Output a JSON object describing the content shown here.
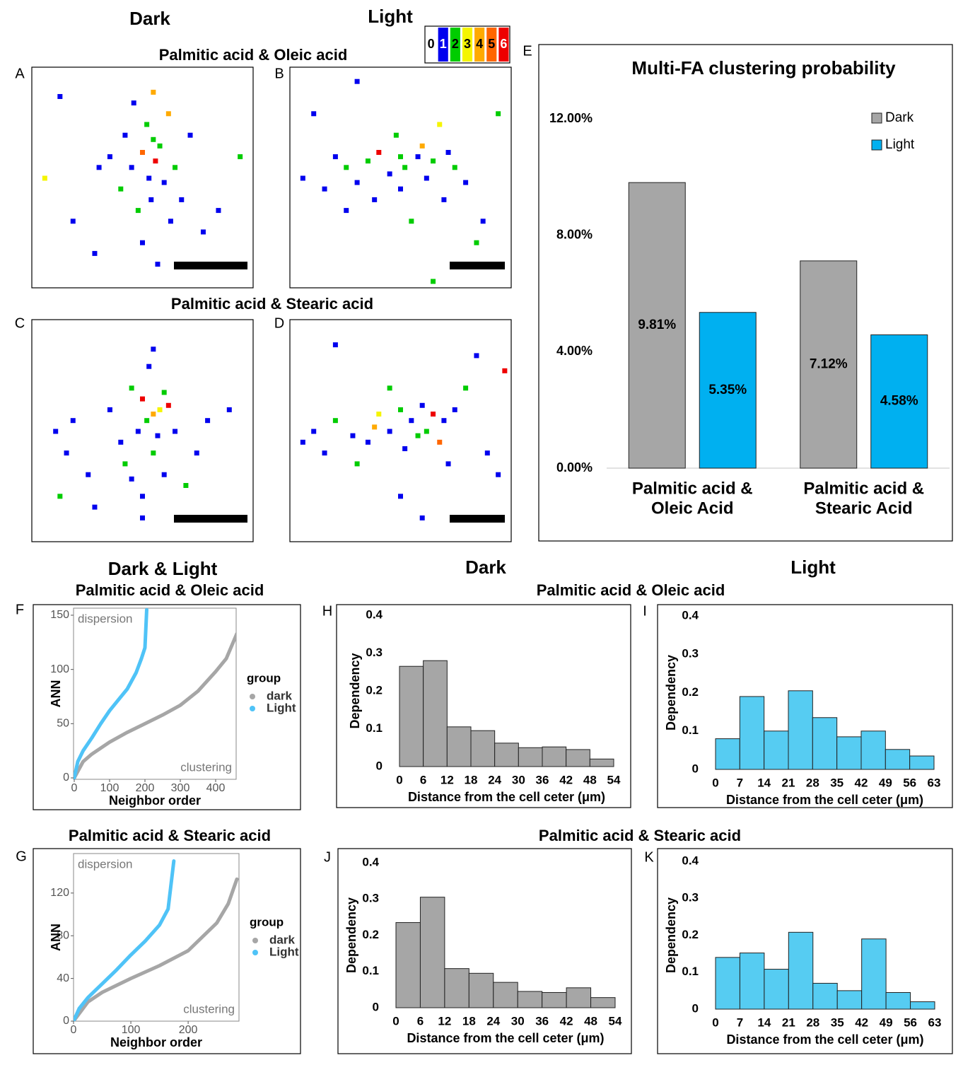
{
  "headers": [
    "Dark",
    "Light",
    "Palmitic acid & Oleic acid",
    "Palmitic acid & Stearic acid",
    "Dark & Light",
    "Palmitic acid & Oleic acid",
    "Dark",
    "Light",
    "Palmitic acid & Oleic acid",
    "Palmitic acid & Stearic acid",
    "Palmitic acid & Stearic acid"
  ],
  "panels": [
    "A",
    "B",
    "C",
    "D",
    "E",
    "F",
    "G",
    "H",
    "I",
    "J",
    "K"
  ],
  "colorbar": {
    "labels": [
      0,
      1,
      2,
      3,
      4,
      5,
      6
    ],
    "colors": [
      "#ffffff",
      "#0000ee",
      "#00cc00",
      "#f5f500",
      "#ffaa00",
      "#ff6600",
      "#ee0000"
    ]
  },
  "chart_data": [
    {
      "type": "scatter",
      "xlim": [
        0,
        100
      ],
      "ylim": [
        0,
        100
      ],
      "x": [
        12,
        18,
        28,
        35,
        40,
        42,
        45,
        46,
        48,
        50,
        50,
        52,
        53,
        54,
        55,
        56,
        57,
        58,
        60,
        62,
        63,
        65,
        68,
        72,
        78,
        85,
        95,
        5,
        30,
        55
      ],
      "y": [
        88,
        30,
        15,
        60,
        45,
        70,
        55,
        85,
        35,
        62,
        20,
        75,
        50,
        40,
        90,
        58,
        10,
        65,
        48,
        80,
        30,
        55,
        40,
        70,
        25,
        35,
        60,
        50,
        55,
        68
      ],
      "levels": [
        1,
        1,
        1,
        1,
        2,
        1,
        1,
        1,
        2,
        5,
        1,
        2,
        1,
        1,
        4,
        6,
        1,
        2,
        1,
        4,
        1,
        2,
        1,
        1,
        1,
        1,
        2,
        3,
        1,
        2
      ]
    },
    {
      "type": "scatter",
      "xlim": [
        0,
        100
      ],
      "ylim": [
        0,
        100
      ],
      "x": [
        5,
        10,
        15,
        20,
        25,
        30,
        35,
        38,
        40,
        45,
        48,
        50,
        52,
        55,
        58,
        60,
        62,
        65,
        68,
        70,
        72,
        75,
        80,
        85,
        88,
        95,
        30,
        50,
        65,
        25
      ],
      "y": [
        50,
        80,
        45,
        60,
        55,
        48,
        58,
        40,
        62,
        52,
        70,
        45,
        55,
        30,
        60,
        65,
        50,
        58,
        75,
        40,
        62,
        55,
        48,
        20,
        30,
        80,
        95,
        60,
        2,
        35
      ],
      "levels": [
        1,
        1,
        1,
        1,
        2,
        1,
        2,
        1,
        6,
        1,
        2,
        1,
        2,
        2,
        1,
        4,
        1,
        2,
        3,
        1,
        1,
        2,
        1,
        2,
        1,
        2,
        1,
        2,
        2,
        1
      ]
    },
    {
      "type": "scatter",
      "xlim": [
        0,
        100
      ],
      "ylim": [
        0,
        100
      ],
      "x": [
        10,
        15,
        18,
        25,
        35,
        40,
        42,
        45,
        48,
        50,
        50,
        52,
        53,
        55,
        55,
        57,
        58,
        60,
        62,
        65,
        70,
        75,
        80,
        90,
        12,
        28,
        50,
        55,
        45,
        60
      ],
      "y": [
        50,
        40,
        55,
        30,
        60,
        45,
        35,
        70,
        50,
        65,
        20,
        55,
        80,
        40,
        88,
        48,
        60,
        30,
        62,
        50,
        25,
        40,
        55,
        60,
        20,
        15,
        10,
        58,
        28,
        68
      ],
      "levels": [
        1,
        1,
        1,
        1,
        1,
        1,
        2,
        2,
        1,
        6,
        1,
        2,
        1,
        2,
        1,
        1,
        3,
        1,
        6,
        1,
        2,
        1,
        1,
        1,
        2,
        1,
        1,
        4,
        1,
        2
      ]
    },
    {
      "type": "scatter",
      "xlim": [
        0,
        100
      ],
      "ylim": [
        0,
        100
      ],
      "x": [
        5,
        10,
        15,
        20,
        28,
        35,
        38,
        40,
        45,
        50,
        52,
        55,
        58,
        60,
        62,
        65,
        68,
        70,
        72,
        75,
        80,
        85,
        90,
        95,
        98,
        20,
        50,
        60,
        30,
        45
      ],
      "y": [
        45,
        50,
        40,
        55,
        48,
        45,
        52,
        58,
        50,
        60,
        42,
        55,
        48,
        62,
        50,
        58,
        45,
        55,
        35,
        60,
        70,
        85,
        40,
        30,
        78,
        90,
        20,
        10,
        35,
        70
      ],
      "levels": [
        1,
        1,
        1,
        2,
        1,
        1,
        4,
        3,
        1,
        2,
        1,
        1,
        2,
        1,
        2,
        6,
        5,
        1,
        1,
        1,
        2,
        1,
        1,
        1,
        6,
        1,
        1,
        1,
        2,
        2
      ]
    },
    {
      "type": "bar",
      "title": "Multi-FA clustering probability",
      "categories": [
        [
          "Palmitic acid &",
          "Oleic Acid"
        ],
        [
          "Palmitic acid &",
          "Stearic Acid"
        ]
      ],
      "series": [
        {
          "name": "Dark",
          "color": "#a6a6a6",
          "values": [
            9.81,
            7.12
          ],
          "value_labels": [
            "9.81%",
            "7.12%"
          ]
        },
        {
          "name": "Light",
          "color": "#00b0f0",
          "values": [
            5.35,
            4.58
          ],
          "value_labels": [
            "5.35%",
            "4.58%"
          ]
        }
      ],
      "ylim": [
        0,
        12
      ],
      "yticks": [
        {
          "value": 0,
          "label": "0.00%"
        },
        {
          "value": 4,
          "label": "4.00%"
        },
        {
          "value": 8,
          "label": "8.00%"
        },
        {
          "value": 12,
          "label": "12.00%"
        }
      ],
      "legend": "upper right"
    },
    {
      "type": "line",
      "xlabel": "Neighbor order",
      "ylabel": "ANN",
      "legend_title": "group",
      "annotations": [
        "dispersion",
        "clustering"
      ],
      "xlim": [
        0,
        460
      ],
      "ylim": [
        0,
        155
      ],
      "xticks": [
        0,
        100,
        200,
        300,
        400
      ],
      "yticks": [
        0,
        50,
        100,
        150
      ],
      "series": [
        {
          "name": "dark",
          "color": "#a6a6a6",
          "x": [
            0,
            25,
            50,
            100,
            150,
            200,
            250,
            300,
            350,
            400,
            430,
            460
          ],
          "values": [
            0,
            15,
            22,
            33,
            42,
            50,
            58,
            67,
            80,
            98,
            110,
            133
          ]
        },
        {
          "name": "Light",
          "color": "#4fc3f7",
          "x": [
            0,
            10,
            25,
            50,
            75,
            100,
            125,
            150,
            175,
            190,
            200,
            205
          ],
          "values": [
            0,
            15,
            25,
            37,
            50,
            62,
            72,
            82,
            97,
            110,
            120,
            155
          ]
        }
      ]
    },
    {
      "type": "line",
      "xlabel": "Neighbor order",
      "ylabel": "ANN",
      "legend_title": "group",
      "annotations": [
        "dispersion",
        "clustering"
      ],
      "xlim": [
        0,
        285
      ],
      "ylim": [
        0,
        155
      ],
      "xticks": [
        0,
        100,
        200
      ],
      "yticks": [
        0,
        40,
        80,
        120
      ],
      "series": [
        {
          "name": "dark",
          "color": "#a6a6a6",
          "x": [
            0,
            25,
            50,
            100,
            150,
            200,
            250,
            270,
            285
          ],
          "values": [
            0,
            18,
            27,
            40,
            52,
            66,
            92,
            110,
            133
          ]
        },
        {
          "name": "Light",
          "color": "#4fc3f7",
          "x": [
            0,
            10,
            25,
            50,
            75,
            100,
            125,
            150,
            165,
            175
          ],
          "values": [
            0,
            12,
            22,
            35,
            48,
            62,
            75,
            90,
            105,
            150
          ]
        }
      ]
    },
    {
      "type": "histogram",
      "xlabel": "Distance from the cell ceter (μm)",
      "ylabel": "Dependency",
      "color": "#a6a6a6",
      "bins": [
        0,
        6,
        12,
        18,
        24,
        30,
        36,
        42,
        48,
        54
      ],
      "values": [
        0.265,
        0.28,
        0.105,
        0.095,
        0.062,
        0.05,
        0.052,
        0.045,
        0.02
      ],
      "xlim": [
        0,
        54
      ],
      "ylim": [
        0,
        0.4
      ],
      "xticks": [
        0,
        6,
        12,
        18,
        24,
        30,
        36,
        42,
        48,
        54
      ],
      "yticks": [
        0,
        0.1,
        0.2,
        0.3,
        0.4
      ]
    },
    {
      "type": "histogram",
      "xlabel": "Distance from the cell ceter (μm)",
      "ylabel": "Dependency",
      "color": "#56ccf2",
      "bins": [
        0,
        7,
        14,
        21,
        28,
        35,
        42,
        49,
        56,
        63
      ],
      "values": [
        0.08,
        0.19,
        0.1,
        0.205,
        0.135,
        0.085,
        0.1,
        0.052,
        0.035
      ],
      "xlim": [
        0,
        63
      ],
      "ylim": [
        0,
        0.4
      ],
      "xticks": [
        0,
        7,
        14,
        21,
        28,
        35,
        42,
        49,
        56,
        63
      ],
      "yticks": [
        0,
        0.1,
        0.2,
        0.3,
        0.4
      ]
    },
    {
      "type": "histogram",
      "xlabel": "Distance from the cell ceter (μm)",
      "ylabel": "Dependency",
      "color": "#a6a6a6",
      "bins": [
        0,
        6,
        12,
        18,
        24,
        30,
        36,
        42,
        48,
        54
      ],
      "values": [
        0.235,
        0.305,
        0.108,
        0.095,
        0.07,
        0.045,
        0.042,
        0.055,
        0.028
      ],
      "xlim": [
        0,
        54
      ],
      "ylim": [
        0,
        0.4
      ],
      "xticks": [
        0,
        6,
        12,
        18,
        24,
        30,
        36,
        42,
        48,
        54
      ],
      "yticks": [
        0,
        0.1,
        0.2,
        0.3,
        0.4
      ]
    },
    {
      "type": "histogram",
      "xlabel": "Distance from the cell ceter (μm)",
      "ylabel": "Dependency",
      "color": "#56ccf2",
      "bins": [
        0,
        7,
        14,
        21,
        28,
        35,
        42,
        49,
        56,
        63
      ],
      "values": [
        0.14,
        0.152,
        0.108,
        0.208,
        0.07,
        0.05,
        0.19,
        0.045,
        0.02
      ],
      "xlim": [
        0,
        63
      ],
      "ylim": [
        0,
        0.4
      ],
      "xticks": [
        0,
        7,
        14,
        21,
        28,
        35,
        42,
        49,
        56,
        63
      ],
      "yticks": [
        0,
        0.1,
        0.2,
        0.3,
        0.4
      ]
    }
  ]
}
